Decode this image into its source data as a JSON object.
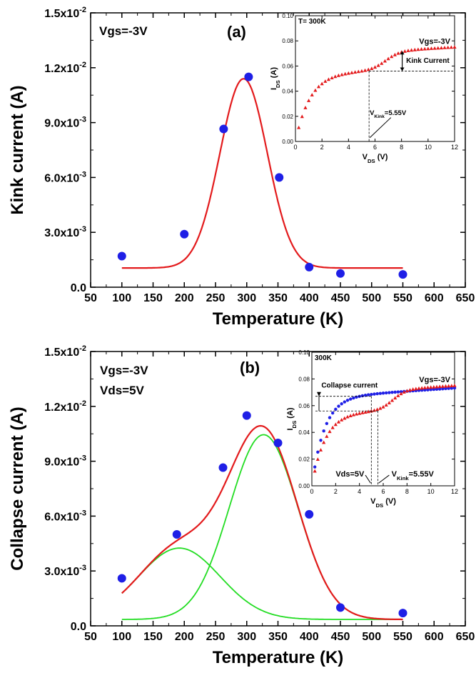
{
  "chart_data": [
    {
      "type": "scatter",
      "panel_label": "(a)",
      "annotation": "Vgs=-3V",
      "xlabel": "Temperature (K)",
      "ylabel": "Kink current (A)",
      "xlim": [
        50,
        650
      ],
      "ylim": [
        0,
        0.015
      ],
      "xticks": [
        "50",
        "100",
        "150",
        "200",
        "250",
        "300",
        "350",
        "400",
        "450",
        "500",
        "550",
        "600",
        "650"
      ],
      "yticks": [
        {
          "m": "0.0",
          "e": ""
        },
        {
          "m": "3.0x10",
          "e": "-3"
        },
        {
          "m": "6.0x10",
          "e": "-3"
        },
        {
          "m": "9.0x10",
          "e": "-3"
        },
        {
          "m": "1.2x10",
          "e": "-2"
        },
        {
          "m": "1.5x10",
          "e": "-2"
        }
      ],
      "series": [
        {
          "kind": "points",
          "color": "#1f1fe6",
          "x": [
            100,
            200,
            263,
            303,
            352,
            400,
            450,
            550
          ],
          "y": [
            0.0017,
            0.0029,
            0.00865,
            0.0115,
            0.006,
            0.0011,
            0.00075,
            0.0007
          ]
        },
        {
          "kind": "gaussian-fit",
          "color": "#e31a1c",
          "baseline": 0.00105,
          "amplitude": 0.01035,
          "center": 295,
          "sigma": 38,
          "x_range": [
            100,
            550
          ]
        }
      ],
      "inset": {
        "temperature_label": "T= 300K",
        "annotation": "Vgs=-3V",
        "kink_label": "Kink Current",
        "vkink_label": {
          "main": "V",
          "sub": "Kink",
          "rest": "=5.55V"
        },
        "xlabel": {
          "main": "V",
          "sub": "DS",
          "rest": " (V)"
        },
        "ylabel": {
          "main": "I",
          "sub": "DS",
          "rest": " (A)"
        },
        "xlim": [
          0,
          12
        ],
        "ylim": [
          0,
          0.1
        ],
        "xticks": [
          "0",
          "2",
          "4",
          "6",
          "8",
          "10",
          "12"
        ],
        "yticks": [
          "0.00",
          "0.02",
          "0.04",
          "0.06",
          "0.08",
          "0.10"
        ],
        "vkink": 5.55,
        "series": [
          {
            "name": "Vgs=-3V",
            "marker": "triangle",
            "color": "#e31a1c",
            "model": "kink",
            "sat1": 0.054,
            "k1": 0.9,
            "slope1": 0.0004,
            "step": 0.015,
            "center2": 6.8,
            "k2": 1.8,
            "slope2": 0.0002,
            "xstep": 0.25
          }
        ],
        "guides": {
          "level_low": 0.056,
          "level_high": 0.072
        }
      }
    },
    {
      "type": "scatter",
      "panel_label": "(b)",
      "annotations": [
        "Vgs=-3V",
        "Vds=5V"
      ],
      "xlabel": "Temperature (K)",
      "ylabel": "Collapse current (A)",
      "xlim": [
        50,
        650
      ],
      "ylim": [
        0,
        0.015
      ],
      "xticks": [
        "50",
        "100",
        "150",
        "200",
        "250",
        "300",
        "350",
        "400",
        "450",
        "500",
        "550",
        "600",
        "650"
      ],
      "yticks": [
        {
          "m": "0.0",
          "e": ""
        },
        {
          "m": "3.0x10",
          "e": "-3"
        },
        {
          "m": "6.0x10",
          "e": "-3"
        },
        {
          "m": "9.0x10",
          "e": "-3"
        },
        {
          "m": "1.2x10",
          "e": "-2"
        },
        {
          "m": "1.5x10",
          "e": "-2"
        }
      ],
      "series": [
        {
          "kind": "points",
          "color": "#1f1fe6",
          "x": [
            100,
            188,
            262,
            300,
            350,
            400,
            450,
            550
          ],
          "y": [
            0.0026,
            0.005,
            0.00865,
            0.0115,
            0.01,
            0.0061,
            0.001,
            0.0007
          ]
        },
        {
          "kind": "gaussian-component",
          "color": "#22dd22",
          "baseline": 0.00035,
          "amplitude": 0.0039,
          "center": 192,
          "sigma": 65,
          "x_range": [
            100,
            550
          ]
        },
        {
          "kind": "gaussian-component",
          "color": "#22dd22",
          "baseline": 0.00035,
          "amplitude": 0.0101,
          "center": 327,
          "sigma": 55,
          "x_range": [
            100,
            550
          ]
        },
        {
          "kind": "sum-fit",
          "color": "#e31a1c",
          "x_range": [
            100,
            550
          ]
        }
      ],
      "inset": {
        "temperature_label": "300K",
        "annotation": "Vgs=-3V",
        "collapse_label": "Collapse current",
        "vds_label": "Vds=5V",
        "vkink_label": {
          "main": "V",
          "sub": "Kink",
          "rest": "=5.55V"
        },
        "xlabel": {
          "main": "V",
          "sub": "DS",
          "rest": " (V)"
        },
        "ylabel": {
          "main": "I",
          "sub": "DS",
          "rest": " (A)"
        },
        "xlim": [
          0,
          12
        ],
        "ylim": [
          0,
          0.1
        ],
        "xticks": [
          "0",
          "2",
          "4",
          "6",
          "8",
          "10",
          "12"
        ],
        "yticks": [
          "0.00",
          "0.02",
          "0.04",
          "0.06",
          "0.08",
          "0.10"
        ],
        "vds": 5,
        "vkink": 5.55,
        "series": [
          {
            "name": "Vds=5V",
            "marker": "circle",
            "color": "#1f1fe6",
            "model": "smooth",
            "sat": 0.066,
            "k": 0.95,
            "slope": 0.0006,
            "xstep": 0.25
          },
          {
            "name": "Vgs=-3V",
            "marker": "triangle",
            "color": "#e31a1c",
            "model": "kink",
            "sat1": 0.054,
            "k1": 0.9,
            "slope1": 0.0004,
            "step": 0.015,
            "center2": 6.8,
            "k2": 1.8,
            "slope2": 0.0002,
            "xstep": 0.25
          }
        ],
        "guides": {
          "level_low": 0.056,
          "level_high": 0.067
        }
      }
    }
  ]
}
